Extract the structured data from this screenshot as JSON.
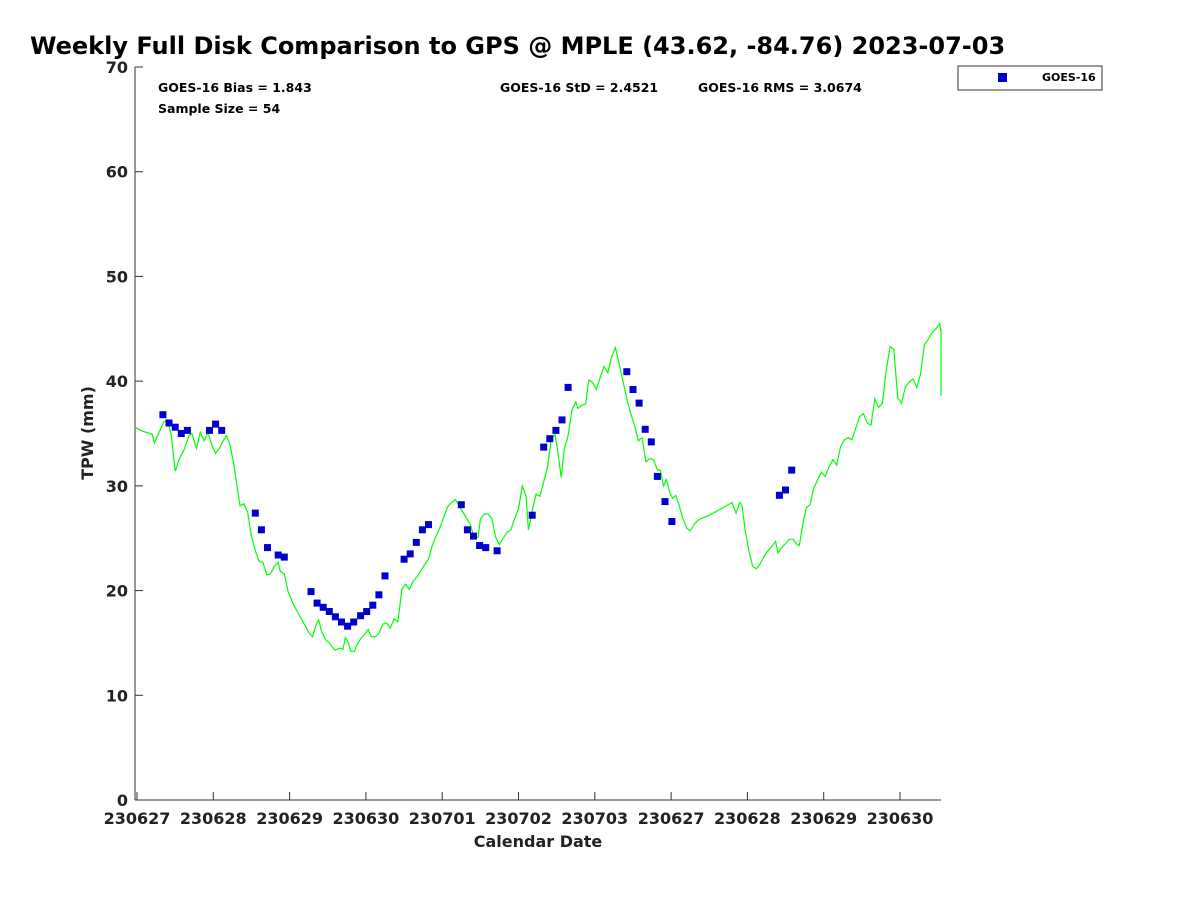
{
  "chart_data": {
    "type": "line+scatter",
    "title": "Weekly Full Disk Comparison to GPS @ MPLE (43.62, -84.76) 2023-07-03",
    "xlabel": "Calendar Date",
    "ylabel": "TPW (mm)",
    "xlim": [
      0,
      10.6
    ],
    "ylim": [
      0,
      70
    ],
    "y_ticks": [
      0,
      10,
      20,
      30,
      40,
      50,
      60,
      70
    ],
    "x_ticks": [
      {
        "x": 0,
        "label": "230627"
      },
      {
        "x": 1,
        "label": "230628"
      },
      {
        "x": 2,
        "label": "230629"
      },
      {
        "x": 3,
        "label": "230630"
      },
      {
        "x": 4,
        "label": "230701"
      },
      {
        "x": 5,
        "label": "230702"
      },
      {
        "x": 6,
        "label": "230703"
      },
      {
        "x": 7,
        "label": "230627"
      },
      {
        "x": 8,
        "label": "230628"
      },
      {
        "x": 9,
        "label": "230629"
      },
      {
        "x": 10,
        "label": "230630"
      }
    ],
    "stats": {
      "bias": "GOES-16 Bias = 1.843",
      "sample": "Sample Size = 54",
      "std": "GOES-16 StD = 2.4521",
      "rms": "GOES-16 RMS = 3.0674"
    },
    "legend": {
      "label": "GOES-16",
      "placement": "top-right"
    },
    "colors": {
      "gps_line": "#00ff00",
      "goes_points": "#0000cc"
    },
    "series": [
      {
        "name": "GPS",
        "style": "line",
        "points": [
          [
            -0.03,
            35.6
          ],
          [
            0.05,
            35.3
          ],
          [
            0.2,
            34.9
          ],
          [
            0.23,
            34.1
          ],
          [
            0.3,
            35.3
          ],
          [
            0.35,
            36.1
          ],
          [
            0.4,
            36.3
          ],
          [
            0.45,
            34.8
          ],
          [
            0.5,
            31.4
          ],
          [
            0.55,
            32.5
          ],
          [
            0.62,
            33.5
          ],
          [
            0.68,
            34.8
          ],
          [
            0.72,
            35.0
          ],
          [
            0.78,
            33.6
          ],
          [
            0.83,
            35.1
          ],
          [
            0.88,
            34.3
          ],
          [
            0.93,
            35.1
          ],
          [
            0.98,
            33.9
          ],
          [
            1.03,
            33.1
          ],
          [
            1.08,
            33.6
          ],
          [
            1.13,
            34.3
          ],
          [
            1.17,
            34.8
          ],
          [
            1.22,
            33.9
          ],
          [
            1.27,
            32.0
          ],
          [
            1.3,
            30.5
          ],
          [
            1.35,
            28.1
          ],
          [
            1.4,
            28.3
          ],
          [
            1.45,
            27.5
          ],
          [
            1.5,
            25.2
          ],
          [
            1.55,
            23.8
          ],
          [
            1.6,
            22.8
          ],
          [
            1.65,
            22.7
          ],
          [
            1.7,
            21.5
          ],
          [
            1.75,
            21.6
          ],
          [
            1.8,
            22.3
          ],
          [
            1.85,
            22.7
          ],
          [
            1.88,
            21.8
          ],
          [
            1.93,
            21.6
          ],
          [
            1.98,
            19.9
          ],
          [
            2.05,
            18.7
          ],
          [
            2.1,
            18.0
          ],
          [
            2.2,
            16.7
          ],
          [
            2.25,
            16.0
          ],
          [
            2.3,
            15.6
          ],
          [
            2.35,
            16.8
          ],
          [
            2.38,
            17.2
          ],
          [
            2.42,
            16.1
          ],
          [
            2.47,
            15.3
          ],
          [
            2.52,
            15.0
          ],
          [
            2.57,
            14.5
          ],
          [
            2.6,
            14.3
          ],
          [
            2.65,
            14.5
          ],
          [
            2.7,
            14.4
          ],
          [
            2.73,
            15.5
          ],
          [
            2.77,
            15.0
          ],
          [
            2.8,
            14.2
          ],
          [
            2.85,
            14.2
          ],
          [
            2.88,
            14.8
          ],
          [
            2.93,
            15.4
          ],
          [
            2.98,
            15.8
          ],
          [
            3.03,
            16.3
          ],
          [
            3.07,
            15.6
          ],
          [
            3.12,
            15.6
          ],
          [
            3.17,
            15.9
          ],
          [
            3.22,
            16.8
          ],
          [
            3.27,
            16.9
          ],
          [
            3.32,
            16.4
          ],
          [
            3.37,
            17.3
          ],
          [
            3.42,
            17.0
          ],
          [
            3.47,
            20.1
          ],
          [
            3.52,
            20.6
          ],
          [
            3.57,
            20.1
          ],
          [
            3.62,
            20.9
          ],
          [
            3.67,
            21.3
          ],
          [
            3.72,
            21.9
          ],
          [
            3.77,
            22.5
          ],
          [
            3.82,
            23.0
          ],
          [
            3.87,
            24.3
          ],
          [
            3.92,
            25.2
          ],
          [
            3.97,
            26.0
          ],
          [
            4.02,
            27.0
          ],
          [
            4.07,
            28.0
          ],
          [
            4.12,
            28.4
          ],
          [
            4.17,
            28.7
          ],
          [
            4.22,
            28.1
          ],
          [
            4.27,
            27.5
          ],
          [
            4.32,
            26.9
          ],
          [
            4.37,
            26.3
          ],
          [
            4.42,
            25.0
          ],
          [
            4.47,
            25.1
          ],
          [
            4.5,
            26.8
          ],
          [
            4.55,
            27.3
          ],
          [
            4.6,
            27.3
          ],
          [
            4.65,
            26.9
          ],
          [
            4.7,
            25.1
          ],
          [
            4.75,
            24.4
          ],
          [
            4.8,
            25.0
          ],
          [
            4.85,
            25.6
          ],
          [
            4.9,
            25.8
          ],
          [
            4.95,
            26.9
          ],
          [
            5.0,
            27.8
          ],
          [
            5.05,
            30.0
          ],
          [
            5.1,
            29.0
          ],
          [
            5.13,
            25.8
          ],
          [
            5.18,
            27.6
          ],
          [
            5.23,
            29.2
          ],
          [
            5.28,
            29.0
          ],
          [
            5.33,
            30.4
          ],
          [
            5.38,
            31.8
          ],
          [
            5.43,
            34.5
          ],
          [
            5.48,
            34.9
          ],
          [
            5.53,
            32.5
          ],
          [
            5.56,
            30.8
          ],
          [
            5.6,
            33.5
          ],
          [
            5.65,
            34.8
          ],
          [
            5.7,
            37.2
          ],
          [
            5.75,
            38.0
          ],
          [
            5.78,
            37.4
          ],
          [
            5.83,
            37.7
          ],
          [
            5.88,
            37.8
          ],
          [
            5.92,
            40.1
          ],
          [
            5.97,
            39.9
          ],
          [
            6.02,
            39.2
          ],
          [
            6.07,
            40.3
          ],
          [
            6.12,
            41.4
          ],
          [
            6.17,
            40.8
          ],
          [
            6.22,
            42.3
          ],
          [
            6.27,
            43.2
          ],
          [
            6.32,
            41.6
          ],
          [
            6.37,
            40.0
          ],
          [
            6.42,
            38.3
          ],
          [
            6.47,
            36.9
          ],
          [
            6.52,
            35.8
          ],
          [
            6.57,
            34.3
          ],
          [
            6.62,
            34.6
          ],
          [
            6.67,
            32.3
          ],
          [
            6.72,
            32.6
          ],
          [
            6.77,
            32.5
          ],
          [
            6.82,
            31.5
          ],
          [
            6.86,
            31.5
          ],
          [
            6.9,
            30.0
          ],
          [
            6.94,
            30.6
          ],
          [
            6.98,
            29.4
          ],
          [
            7.02,
            28.8
          ],
          [
            7.06,
            29.1
          ],
          [
            7.1,
            28.3
          ],
          [
            7.15,
            27.0
          ],
          [
            7.2,
            26.0
          ],
          [
            7.25,
            25.7
          ],
          [
            7.3,
            26.3
          ],
          [
            7.35,
            26.7
          ],
          [
            7.4,
            26.9
          ],
          [
            7.5,
            27.2
          ],
          [
            7.6,
            27.6
          ],
          [
            7.7,
            28.0
          ],
          [
            7.8,
            28.4
          ],
          [
            7.85,
            27.4
          ],
          [
            7.9,
            28.4
          ],
          [
            7.93,
            28.1
          ],
          [
            7.97,
            25.8
          ],
          [
            8.02,
            23.8
          ],
          [
            8.07,
            22.3
          ],
          [
            8.12,
            22.1
          ],
          [
            8.17,
            22.6
          ],
          [
            8.22,
            23.3
          ],
          [
            8.27,
            23.8
          ],
          [
            8.32,
            24.2
          ],
          [
            8.37,
            24.7
          ],
          [
            8.4,
            23.6
          ],
          [
            8.45,
            24.1
          ],
          [
            8.5,
            24.5
          ],
          [
            8.55,
            24.9
          ],
          [
            8.6,
            24.9
          ],
          [
            8.65,
            24.4
          ],
          [
            8.68,
            24.3
          ],
          [
            8.73,
            26.5
          ],
          [
            8.77,
            27.9
          ],
          [
            8.82,
            28.2
          ],
          [
            8.87,
            29.8
          ],
          [
            8.92,
            30.6
          ],
          [
            8.97,
            31.3
          ],
          [
            9.02,
            30.9
          ],
          [
            9.07,
            31.8
          ],
          [
            9.12,
            32.5
          ],
          [
            9.17,
            32.0
          ],
          [
            9.22,
            33.7
          ],
          [
            9.27,
            34.4
          ],
          [
            9.32,
            34.6
          ],
          [
            9.37,
            34.4
          ],
          [
            9.42,
            35.5
          ],
          [
            9.47,
            36.6
          ],
          [
            9.52,
            36.9
          ],
          [
            9.57,
            36.0
          ],
          [
            9.62,
            35.8
          ],
          [
            9.67,
            38.3
          ],
          [
            9.72,
            37.5
          ],
          [
            9.77,
            37.9
          ],
          [
            9.82,
            41.1
          ],
          [
            9.87,
            43.3
          ],
          [
            9.92,
            43.0
          ],
          [
            9.97,
            38.4
          ],
          [
            10.02,
            37.9
          ],
          [
            10.07,
            39.4
          ],
          [
            10.12,
            39.9
          ],
          [
            10.17,
            40.2
          ],
          [
            10.22,
            39.4
          ],
          [
            10.27,
            40.7
          ],
          [
            10.32,
            43.5
          ],
          [
            10.37,
            44.0
          ],
          [
            10.42,
            44.6
          ],
          [
            10.47,
            45.0
          ],
          [
            10.52,
            45.5
          ],
          [
            10.57,
            44.7
          ],
          [
            10.62,
            45.0
          ],
          [
            10.67,
            43.9
          ],
          [
            10.72,
            42.4
          ],
          [
            10.76,
            41.6
          ],
          [
            10.8,
            42.3
          ],
          [
            10.85,
            40.0
          ],
          [
            10.9,
            39.0
          ],
          [
            10.95,
            38.6
          ]
        ]
      },
      {
        "name": "GOES-16",
        "style": "markers",
        "points": [
          [
            0.34,
            36.8
          ],
          [
            0.42,
            36.0
          ],
          [
            0.5,
            35.6
          ],
          [
            0.58,
            35.0
          ],
          [
            0.66,
            35.3
          ],
          [
            0.95,
            35.3
          ],
          [
            1.03,
            35.9
          ],
          [
            1.11,
            35.3
          ],
          [
            1.55,
            27.4
          ],
          [
            1.63,
            25.8
          ],
          [
            1.71,
            24.1
          ],
          [
            1.85,
            23.4
          ],
          [
            1.93,
            23.2
          ],
          [
            2.28,
            19.9
          ],
          [
            2.36,
            18.8
          ],
          [
            2.44,
            18.4
          ],
          [
            2.52,
            18.0
          ],
          [
            2.6,
            17.5
          ],
          [
            2.68,
            17.0
          ],
          [
            2.76,
            16.6
          ],
          [
            2.84,
            17.0
          ],
          [
            2.93,
            17.6
          ],
          [
            3.01,
            18.0
          ],
          [
            3.09,
            18.6
          ],
          [
            3.17,
            19.6
          ],
          [
            3.25,
            21.4
          ],
          [
            3.5,
            23.0
          ],
          [
            3.58,
            23.5
          ],
          [
            3.66,
            24.6
          ],
          [
            3.74,
            25.8
          ],
          [
            3.82,
            26.3
          ],
          [
            4.25,
            28.2
          ],
          [
            4.33,
            25.8
          ],
          [
            4.41,
            25.2
          ],
          [
            4.49,
            24.3
          ],
          [
            4.57,
            24.1
          ],
          [
            4.72,
            23.8
          ],
          [
            5.18,
            27.2
          ],
          [
            5.33,
            33.7
          ],
          [
            5.41,
            34.5
          ],
          [
            5.49,
            35.3
          ],
          [
            5.57,
            36.3
          ],
          [
            5.65,
            39.4
          ],
          [
            6.42,
            40.9
          ],
          [
            6.5,
            39.2
          ],
          [
            6.58,
            37.9
          ],
          [
            6.66,
            35.4
          ],
          [
            6.74,
            34.2
          ],
          [
            6.82,
            30.9
          ],
          [
            6.92,
            28.5
          ],
          [
            7.01,
            26.6
          ],
          [
            8.42,
            29.1
          ],
          [
            8.5,
            29.6
          ],
          [
            8.58,
            31.5
          ]
        ]
      }
    ]
  }
}
